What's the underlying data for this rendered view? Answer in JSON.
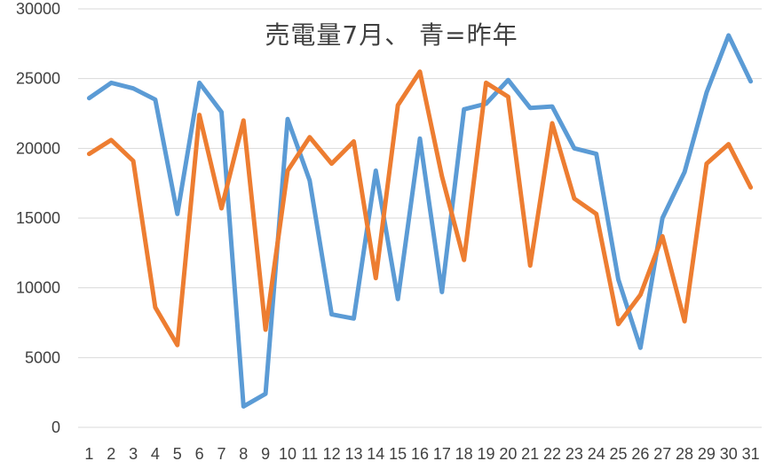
{
  "chart_data": {
    "type": "line",
    "title": "売電量7月、 青=昨年",
    "xlabel": "",
    "ylabel": "",
    "ylim": [
      0,
      30000
    ],
    "yticks": [
      0,
      5000,
      10000,
      15000,
      20000,
      25000,
      30000
    ],
    "grid": true,
    "legend": "none",
    "categories": [
      "1",
      "2",
      "3",
      "4",
      "5",
      "6",
      "7",
      "8",
      "9",
      "10",
      "11",
      "12",
      "13",
      "14",
      "15",
      "16",
      "17",
      "18",
      "19",
      "20",
      "21",
      "22",
      "23",
      "24",
      "25",
      "26",
      "27",
      "28",
      "29",
      "30",
      "31"
    ],
    "series": [
      {
        "color": "#5B9BD5",
        "values": [
          23600,
          24700,
          24300,
          23500,
          15300,
          24700,
          22600,
          1500,
          2400,
          22100,
          17700,
          8100,
          7800,
          18400,
          9200,
          20700,
          9700,
          22800,
          23200,
          24900,
          22900,
          23000,
          20000,
          19600,
          10600,
          5700,
          15000,
          18300,
          24000,
          28100,
          24800
        ]
      },
      {
        "color": "#ED7D31",
        "values": [
          19600,
          20600,
          19100,
          8600,
          5900,
          22400,
          15700,
          22000,
          7000,
          18400,
          20800,
          18900,
          20500,
          10700,
          23100,
          25500,
          18000,
          12000,
          24700,
          23700,
          11600,
          21800,
          16400,
          15300,
          7400,
          9500,
          13700,
          7600,
          18900,
          20300,
          17200
        ]
      }
    ]
  }
}
